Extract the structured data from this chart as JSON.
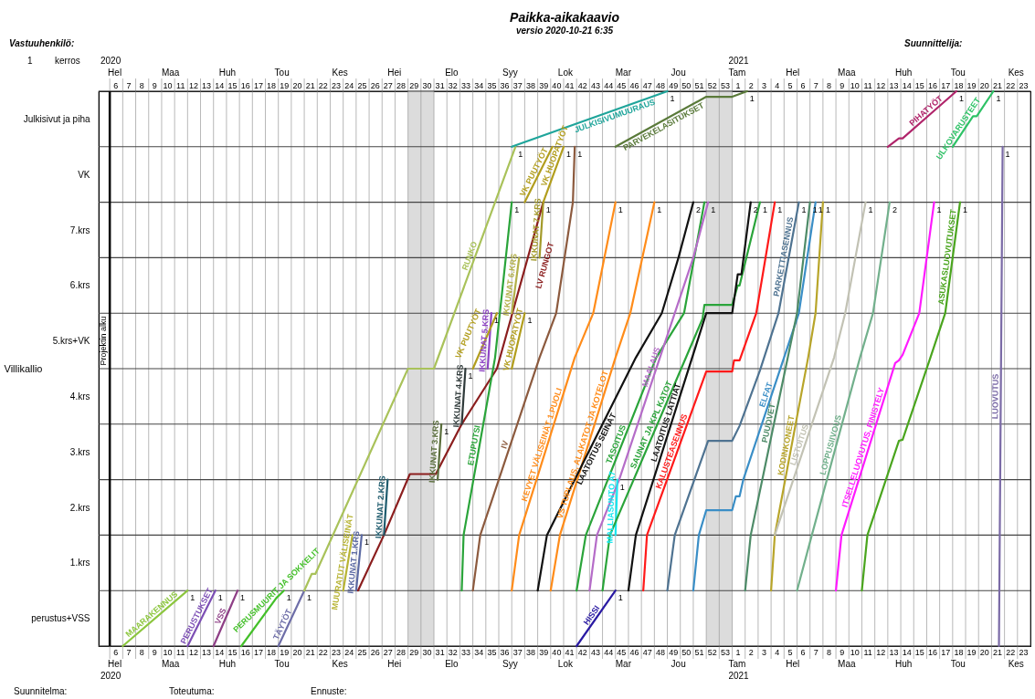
{
  "chart_data": {
    "type": "line",
    "title": "Paikka-aikakaavio",
    "subtitle": "versio 2020-10-21 6:35",
    "ylabel": "Villikallio",
    "xlim": [
      "2020-01-28",
      "2021-06-14"
    ],
    "ylim": [
      0,
      10
    ],
    "x2lim": [
      "2020-01-28",
      "2021-06-14"
    ],
    "grid": true,
    "xticks": [
      {
        "value": "2020-02-06",
        "label": "6"
      },
      {
        "value": "2020-02-13",
        "label": "7"
      },
      {
        "value": "2020-02-20",
        "label": "8"
      },
      {
        "value": "2020-02-27",
        "label": "9"
      },
      {
        "value": "2020-03-05",
        "label": "10"
      },
      {
        "value": "2020-03-12",
        "label": "11"
      },
      {
        "value": "2020-03-19",
        "label": "12"
      },
      {
        "value": "2020-03-26",
        "label": "13"
      },
      {
        "value": "2020-04-02",
        "label": "14"
      },
      {
        "value": "2020-04-09",
        "label": "15"
      },
      {
        "value": "2020-04-16",
        "label": "16"
      },
      {
        "value": "2020-04-23",
        "label": "17"
      },
      {
        "value": "2020-04-30",
        "label": "18"
      },
      {
        "value": "2020-05-07",
        "label": "19"
      },
      {
        "value": "2020-05-14",
        "label": "20"
      },
      {
        "value": "2020-05-21",
        "label": "21"
      },
      {
        "value": "2020-05-28",
        "label": "22"
      },
      {
        "value": "2020-06-04",
        "label": "23"
      },
      {
        "value": "2020-06-11",
        "label": "24"
      },
      {
        "value": "2020-06-18",
        "label": "25"
      },
      {
        "value": "2020-06-25",
        "label": "26"
      },
      {
        "value": "2020-07-02",
        "label": "27"
      },
      {
        "value": "2020-07-09",
        "label": "28"
      },
      {
        "value": "2020-07-16",
        "label": "29"
      },
      {
        "value": "2020-07-23",
        "label": "30"
      },
      {
        "value": "2020-07-30",
        "label": "31"
      },
      {
        "value": "2020-08-06",
        "label": "32"
      },
      {
        "value": "2020-08-13",
        "label": "33"
      },
      {
        "value": "2020-08-20",
        "label": "34"
      },
      {
        "value": "2020-08-27",
        "label": "35"
      },
      {
        "value": "2020-09-03",
        "label": "36"
      },
      {
        "value": "2020-09-10",
        "label": "37"
      },
      {
        "value": "2020-09-17",
        "label": "38"
      },
      {
        "value": "2020-09-24",
        "label": "39"
      },
      {
        "value": "2020-10-01",
        "label": "40"
      },
      {
        "value": "2020-10-08",
        "label": "41"
      },
      {
        "value": "2020-10-15",
        "label": "42"
      },
      {
        "value": "2020-10-22",
        "label": "43"
      },
      {
        "value": "2020-10-29",
        "label": "44"
      },
      {
        "value": "2020-11-05",
        "label": "45"
      },
      {
        "value": "2020-11-12",
        "label": "46"
      },
      {
        "value": "2020-11-19",
        "label": "47"
      },
      {
        "value": "2020-11-26",
        "label": "48"
      },
      {
        "value": "2020-12-03",
        "label": "49"
      },
      {
        "value": "2020-12-10",
        "label": "50"
      },
      {
        "value": "2020-12-17",
        "label": "51"
      },
      {
        "value": "2020-12-24",
        "label": "52"
      },
      {
        "value": "2020-12-31",
        "label": "53"
      },
      {
        "value": "2021-01-07",
        "label": "1"
      },
      {
        "value": "2021-01-14",
        "label": "2"
      },
      {
        "value": "2021-01-21",
        "label": "3"
      },
      {
        "value": "2021-01-28",
        "label": "4"
      },
      {
        "value": "2021-02-04",
        "label": "5"
      },
      {
        "value": "2021-02-11",
        "label": "6"
      },
      {
        "value": "2021-02-18",
        "label": "7"
      },
      {
        "value": "2021-02-25",
        "label": "8"
      },
      {
        "value": "2021-03-04",
        "label": "9"
      },
      {
        "value": "2021-03-11",
        "label": "10"
      },
      {
        "value": "2021-03-18",
        "label": "11"
      },
      {
        "value": "2021-03-25",
        "label": "12"
      },
      {
        "value": "2021-04-01",
        "label": "13"
      },
      {
        "value": "2021-04-08",
        "label": "14"
      },
      {
        "value": "2021-04-15",
        "label": "15"
      },
      {
        "value": "2021-04-22",
        "label": "16"
      },
      {
        "value": "2021-04-29",
        "label": "17"
      },
      {
        "value": "2021-05-06",
        "label": "18"
      },
      {
        "value": "2021-05-13",
        "label": "19"
      },
      {
        "value": "2021-05-20",
        "label": "20"
      },
      {
        "value": "2021-05-27",
        "label": "21"
      },
      {
        "value": "2021-06-03",
        "label": "22"
      },
      {
        "value": "2021-06-10",
        "label": "23"
      },
      {
        "value": "2020-02-03",
        "label": null
      },
      {
        "value": "2020-02-10",
        "label": null
      },
      {
        "value": "2020-02-17",
        "label": null
      },
      {
        "value": "2020-02-24",
        "label": null
      },
      {
        "value": "2020-03-02",
        "label": null
      },
      {
        "value": "2020-03-09",
        "label": null
      },
      {
        "value": "2020-03-16",
        "label": null
      },
      {
        "value": "2020-03-23",
        "label": null
      },
      {
        "value": "2020-03-30",
        "label": null
      },
      {
        "value": "2020-04-06",
        "label": null
      },
      {
        "value": "2020-04-13",
        "label": null
      },
      {
        "value": "2020-04-20",
        "label": null
      },
      {
        "value": "2020-04-27",
        "label": null
      },
      {
        "value": "2020-05-04",
        "label": null
      },
      {
        "value": "2020-05-11",
        "label": null
      },
      {
        "value": "2020-05-18",
        "label": null
      },
      {
        "value": "2020-05-25",
        "label": null
      },
      {
        "value": "2020-06-01",
        "label": null
      },
      {
        "value": "2020-06-08",
        "label": null
      },
      {
        "value": "2020-06-15",
        "label": null
      },
      {
        "value": "2020-06-22",
        "label": null
      },
      {
        "value": "2020-06-29",
        "label": null
      },
      {
        "value": "2020-07-06",
        "label": null
      },
      {
        "value": "2020-07-13",
        "label": null
      },
      {
        "value": "2020-07-20",
        "label": null
      },
      {
        "value": "2020-07-27",
        "label": null
      },
      {
        "value": "2020-08-03",
        "label": null
      },
      {
        "value": "2020-08-10",
        "label": null
      },
      {
        "value": "2020-08-17",
        "label": null
      },
      {
        "value": "2020-08-24",
        "label": null
      },
      {
        "value": "2020-08-31",
        "label": null
      },
      {
        "value": "2020-09-07",
        "label": null
      },
      {
        "value": "2020-09-14",
        "label": null
      },
      {
        "value": "2020-09-21",
        "label": null
      },
      {
        "value": "2020-09-28",
        "label": null
      },
      {
        "value": "2020-10-05",
        "label": null
      },
      {
        "value": "2020-10-12",
        "label": null
      },
      {
        "value": "2020-10-19",
        "label": null
      },
      {
        "value": "2020-10-26",
        "label": null
      },
      {
        "value": "2020-11-02",
        "label": null
      },
      {
        "value": "2020-11-09",
        "label": null
      },
      {
        "value": "2020-11-16",
        "label": null
      },
      {
        "value": "2020-11-23",
        "label": null
      },
      {
        "value": "2020-11-30",
        "label": null
      },
      {
        "value": "2020-12-07",
        "label": null
      },
      {
        "value": "2020-12-14",
        "label": null
      },
      {
        "value": "2020-12-21",
        "label": null
      },
      {
        "value": "2020-12-28",
        "label": null
      },
      {
        "value": "2021-01-04",
        "label": null
      },
      {
        "value": "2021-01-11",
        "label": null
      },
      {
        "value": "2021-01-18",
        "label": null
      },
      {
        "value": "2021-01-25",
        "label": null
      },
      {
        "value": "2021-02-01",
        "label": null
      },
      {
        "value": "2021-02-08",
        "label": null
      },
      {
        "value": "2021-02-15",
        "label": null
      },
      {
        "value": "2021-02-22",
        "label": null
      },
      {
        "value": "2021-03-01",
        "label": null
      },
      {
        "value": "2021-03-08",
        "label": null
      },
      {
        "value": "2021-03-15",
        "label": null
      },
      {
        "value": "2021-03-22",
        "label": null
      },
      {
        "value": "2021-03-29",
        "label": null
      },
      {
        "value": "2021-04-05",
        "label": null
      },
      {
        "value": "2021-04-12",
        "label": null
      },
      {
        "value": "2021-04-19",
        "label": null
      },
      {
        "value": "2021-04-26",
        "label": null
      },
      {
        "value": "2021-05-03",
        "label": null
      },
      {
        "value": "2021-05-10",
        "label": null
      },
      {
        "value": "2021-05-17",
        "label": null
      },
      {
        "value": "2021-05-24",
        "label": null
      },
      {
        "value": "2021-05-31",
        "label": null
      },
      {
        "value": "2021-06-07",
        "label": null
      }
    ],
    "x2ticks": [
      {
        "value": "2020-02-06",
        "label": "6"
      },
      {
        "value": "2020-02-13",
        "label": "7"
      },
      {
        "value": "2020-02-20",
        "label": "8"
      },
      {
        "value": "2020-02-27",
        "label": "9"
      },
      {
        "value": "2020-03-05",
        "label": "10"
      },
      {
        "value": "2020-03-12",
        "label": "11"
      },
      {
        "value": "2020-03-19",
        "label": "12"
      },
      {
        "value": "2020-03-26",
        "label": "13"
      },
      {
        "value": "2020-04-02",
        "label": "14"
      },
      {
        "value": "2020-04-09",
        "label": "15"
      },
      {
        "value": "2020-04-16",
        "label": "16"
      },
      {
        "value": "2020-04-23",
        "label": "17"
      },
      {
        "value": "2020-04-30",
        "label": "18"
      },
      {
        "value": "2020-05-07",
        "label": "19"
      },
      {
        "value": "2020-05-14",
        "label": "20"
      },
      {
        "value": "2020-05-21",
        "label": "21"
      },
      {
        "value": "2020-05-28",
        "label": "22"
      },
      {
        "value": "2020-06-04",
        "label": "23"
      },
      {
        "value": "2020-06-11",
        "label": "24"
      },
      {
        "value": "2020-06-18",
        "label": "25"
      },
      {
        "value": "2020-06-25",
        "label": "26"
      },
      {
        "value": "2020-07-02",
        "label": "27"
      },
      {
        "value": "2020-07-09",
        "label": "28"
      },
      {
        "value": "2020-07-16",
        "label": "29"
      },
      {
        "value": "2020-07-23",
        "label": "30"
      },
      {
        "value": "2020-07-30",
        "label": "31"
      },
      {
        "value": "2020-08-06",
        "label": "32"
      },
      {
        "value": "2020-08-13",
        "label": "33"
      },
      {
        "value": "2020-08-20",
        "label": "34"
      },
      {
        "value": "2020-08-27",
        "label": "35"
      },
      {
        "value": "2020-09-03",
        "label": "36"
      },
      {
        "value": "2020-09-10",
        "label": "37"
      },
      {
        "value": "2020-09-17",
        "label": "38"
      },
      {
        "value": "2020-09-24",
        "label": "39"
      },
      {
        "value": "2020-10-01",
        "label": "40"
      },
      {
        "value": "2020-10-08",
        "label": "41"
      },
      {
        "value": "2020-10-15",
        "label": "42"
      },
      {
        "value": "2020-10-22",
        "label": "43"
      },
      {
        "value": "2020-10-29",
        "label": "44"
      },
      {
        "value": "2020-11-05",
        "label": "45"
      },
      {
        "value": "2020-11-12",
        "label": "46"
      },
      {
        "value": "2020-11-19",
        "label": "47"
      },
      {
        "value": "2020-11-26",
        "label": "48"
      },
      {
        "value": "2020-12-03",
        "label": "49"
      },
      {
        "value": "2020-12-10",
        "label": "50"
      },
      {
        "value": "2020-12-17",
        "label": "51"
      },
      {
        "value": "2020-12-24",
        "label": "52"
      },
      {
        "value": "2020-12-31",
        "label": "53"
      },
      {
        "value": "2021-01-07",
        "label": "1"
      },
      {
        "value": "2021-01-14",
        "label": "2"
      },
      {
        "value": "2021-01-21",
        "label": "3"
      },
      {
        "value": "2021-01-28",
        "label": "4"
      },
      {
        "value": "2021-02-04",
        "label": "5"
      },
      {
        "value": "2021-02-11",
        "label": "6"
      },
      {
        "value": "2021-02-18",
        "label": "7"
      },
      {
        "value": "2021-02-25",
        "label": "8"
      },
      {
        "value": "2021-03-04",
        "label": "9"
      },
      {
        "value": "2021-03-11",
        "label": "10"
      },
      {
        "value": "2021-03-18",
        "label": "11"
      },
      {
        "value": "2021-03-25",
        "label": "12"
      },
      {
        "value": "2021-04-01",
        "label": "13"
      },
      {
        "value": "2021-04-08",
        "label": "14"
      },
      {
        "value": "2021-04-15",
        "label": "15"
      },
      {
        "value": "2021-04-22",
        "label": "16"
      },
      {
        "value": "2021-04-29",
        "label": "17"
      },
      {
        "value": "2021-05-06",
        "label": "18"
      },
      {
        "value": "2021-05-13",
        "label": "19"
      },
      {
        "value": "2021-05-20",
        "label": "20"
      },
      {
        "value": "2021-05-27",
        "label": "21"
      },
      {
        "value": "2021-06-03",
        "label": "22"
      },
      {
        "value": "2021-06-10",
        "label": "23"
      }
    ],
    "yticks": [
      {
        "value": 0.5,
        "label": "perustus+VSS"
      },
      {
        "value": 1.5,
        "label": "1.krs"
      },
      {
        "value": 2.5,
        "label": "2.krs"
      },
      {
        "value": 3.5,
        "label": "3.krs"
      },
      {
        "value": 4.5,
        "label": "4.krs"
      },
      {
        "value": 5.5,
        "label": "5.krs+VK"
      },
      {
        "value": 6.5,
        "label": "6.krs"
      },
      {
        "value": 7.5,
        "label": "7.krs"
      },
      {
        "value": 8.5,
        "label": "VK"
      },
      {
        "value": 9.5,
        "label": "Julkisivut ja piha"
      },
      {
        "value": 0,
        "label": null
      },
      {
        "value": 1,
        "label": null
      },
      {
        "value": 2,
        "label": null
      },
      {
        "value": 3,
        "label": null
      },
      {
        "value": 4,
        "label": null
      },
      {
        "value": 5,
        "label": null
      },
      {
        "value": 6,
        "label": null
      },
      {
        "value": 7,
        "label": null
      },
      {
        "value": 8,
        "label": null
      },
      {
        "value": 9,
        "label": null
      },
      {
        "value": 10,
        "label": null
      }
    ],
    "bands": [
      {
        "axis": "x",
        "from": "2020-07-13",
        "to": "2020-07-27",
        "color": "#dcdcdc"
      },
      {
        "axis": "x",
        "from": "2020-12-21",
        "to": "2021-01-04",
        "color": "#dcdcdc"
      }
    ],
    "ref_lines": [
      {
        "axis": "x",
        "value": "2020-02-03",
        "label": "Projektin alku",
        "color": "#000000"
      }
    ],
    "series": [
      {
        "name": "MAARAKENNUS",
        "color": "#8cc63e",
        "x": [
          "2020-02-10",
          "2020-03-16"
        ],
        "values": [
          0,
          1
        ]
      },
      {
        "name": "PERUSTUKSET",
        "color": "#7d4fb5",
        "x": [
          "2020-03-16",
          "2020-03-31"
        ],
        "values": [
          0,
          1
        ]
      },
      {
        "name": "VSS",
        "color": "#8e3f86",
        "x": [
          "2020-03-30",
          "2020-04-12"
        ],
        "values": [
          0,
          1
        ]
      },
      {
        "name": "PERUSMUURIT JA SOKKELIT",
        "color": "#44c02a",
        "x": [
          "2020-04-14",
          "2020-05-03",
          "2020-05-07"
        ],
        "values": [
          0,
          0.87,
          1
        ]
      },
      {
        "name": "TÄYTÖT",
        "color": "#6e6ea8",
        "x": [
          "2020-05-04",
          "2020-05-18"
        ],
        "values": [
          0,
          1
        ]
      },
      {
        "name": "RUNKO",
        "color": "#a9c25a",
        "x": [
          "2020-05-18",
          "2020-05-22",
          "2020-05-24",
          "2020-07-13",
          "2020-07-27",
          "2020-09-09"
        ],
        "values": [
          1,
          1.3,
          1.3,
          5,
          5,
          9
        ]
      },
      {
        "name": "MUURATUT VÄLISEINÄT",
        "color": "#b8b435",
        "x": [
          "2020-06-08",
          "2020-06-13"
        ],
        "values": [
          1,
          2
        ]
      },
      {
        "name": "IKKUNAT 1.KRS",
        "color": "#5c6aa3",
        "x": [
          "2020-06-15",
          "2020-06-18"
        ],
        "values": [
          1,
          2
        ]
      },
      {
        "name": "LV RUNGOT",
        "color": "#8b1e1e",
        "x": [
          "2020-06-16",
          "2020-06-30",
          "2020-07-14",
          "2020-07-28",
          "2020-08-11",
          "2020-08-30",
          "2020-09-24"
        ],
        "values": [
          1,
          2,
          3.1,
          3.1,
          4,
          5,
          8
        ]
      },
      {
        "name": "IKKUNAT 2.KRS",
        "color": "#1f5c6e",
        "x": [
          "2020-06-30",
          "2020-07-02"
        ],
        "values": [
          2,
          3
        ]
      },
      {
        "name": "IKKUNAT 3.KRS",
        "color": "#5a6e3c",
        "x": [
          "2020-07-29",
          "2020-07-31"
        ],
        "values": [
          3,
          4
        ]
      },
      {
        "name": "IKKUNAT 4.KRS",
        "color": "#2f3a3a",
        "x": [
          "2020-08-11",
          "2020-08-13"
        ],
        "values": [
          4,
          5
        ]
      },
      {
        "name": "IKKUNAT 5.KRS",
        "color": "#8e44c4",
        "x": [
          "2020-08-25",
          "2020-08-27"
        ],
        "values": [
          5,
          6
        ]
      },
      {
        "name": "ETUPUTSI",
        "color": "#2aa43a",
        "x": [
          "2020-08-11",
          "2020-08-12",
          "2020-08-29",
          "2020-09-07"
        ],
        "values": [
          1,
          2,
          5.2,
          8
        ]
      },
      {
        "name": "IKKUNAT 6.KRS",
        "color": "#b3b04a",
        "x": [
          "2020-09-07",
          "2020-09-11"
        ],
        "values": [
          6,
          7
        ]
      },
      {
        "name": "IKKUNAT 7.KRS",
        "color": "#a39a2a",
        "x": [
          "2020-09-22",
          "2020-09-24"
        ],
        "values": [
          7,
          8
        ]
      },
      {
        "name": "VK HUOPATYÖT",
        "color": "#b29e1e",
        "x": [
          "2020-09-07",
          "2020-09-14"
        ],
        "values": [
          5,
          6
        ]
      },
      {
        "name": "VK PUUTYÖT",
        "color": "#b29e1e",
        "x": [
          "2020-08-17",
          "2020-08-30"
        ],
        "values": [
          5,
          6
        ]
      },
      {
        "name": "VK PUUTYÖT",
        "color": "#b29e1e",
        "x": [
          "2020-09-14",
          "2020-09-29"
        ],
        "values": [
          8,
          9
        ]
      },
      {
        "name": "VK HUOPATYÖT",
        "color": "#b29e1e",
        "x": [
          "2020-09-24",
          "2020-10-05"
        ],
        "values": [
          8,
          9
        ]
      },
      {
        "name": "IV",
        "color": "#8c5a3e",
        "x": [
          "2020-08-17",
          "2020-08-21",
          "2020-09-22",
          "2020-10-01",
          "2020-10-10",
          "2020-10-11"
        ],
        "values": [
          1,
          2,
          5.2,
          6,
          8,
          9
        ]
      },
      {
        "name": "KEVYET VÄLISEINÄT 1.PUOLI",
        "color": "#ff8c1a",
        "x": [
          "2020-09-07",
          "2020-09-11",
          "2020-10-11",
          "2020-10-21",
          "2020-11-02"
        ],
        "values": [
          1,
          2,
          5.2,
          6,
          8
        ]
      },
      {
        "name": "VS TUPLAUS, ALAKATOT JA KOTELOT",
        "color": "#ff8c1a",
        "x": [
          "2020-09-28",
          "2020-10-03",
          "2020-11-02",
          "2020-11-10",
          "2020-11-23"
        ],
        "values": [
          1,
          2,
          5.2,
          6,
          8
        ]
      },
      {
        "name": "LAATOITUS SEINÄT",
        "color": "#111111",
        "x": [
          "2020-09-21",
          "2020-09-26",
          "2020-11-13",
          "2020-11-27",
          "2020-12-06",
          "2020-12-14"
        ],
        "values": [
          1,
          2,
          5.2,
          6,
          7,
          8
        ]
      },
      {
        "name": "TASOITUS",
        "color": "#2aa43a",
        "x": [
          "2020-10-12",
          "2020-10-17",
          "2020-11-24",
          "2020-12-09",
          "2020-12-20"
        ],
        "values": [
          1,
          2,
          5.2,
          6,
          8
        ]
      },
      {
        "name": "MAALAUS",
        "color": "#b56cc8",
        "x": [
          "2020-10-19",
          "2020-10-23",
          "2020-11-04",
          "2020-12-14",
          "2020-12-22"
        ],
        "values": [
          1,
          2,
          3,
          7,
          8
        ]
      },
      {
        "name": "MALLIASUNTO A7",
        "color": "#19e6ef",
        "x": [
          "2020-11-02",
          "2020-11-03"
        ],
        "values": [
          2,
          3
        ]
      },
      {
        "name": "SAUNAT JA KPL KATOT",
        "color": "#2aa43a",
        "x": [
          "2020-10-26",
          "2020-10-30",
          "2020-12-19",
          "2020-12-20",
          "2021-01-04",
          "2021-01-07",
          "2021-01-08",
          "2021-01-19"
        ],
        "values": [
          1,
          2,
          5.9,
          6.15,
          6.15,
          6.5,
          6.5,
          8
        ]
      },
      {
        "name": "LAATOITUS LATTIAT",
        "color": "#111111",
        "x": [
          "2020-11-09",
          "2020-11-13",
          "2020-12-21",
          "2021-01-04",
          "2021-01-07",
          "2021-01-09",
          "2021-01-14"
        ],
        "values": [
          1,
          2,
          6,
          6,
          6.7,
          6.7,
          8
        ]
      },
      {
        "name": "KALUSTEASENNUS",
        "color": "#ff1a1a",
        "x": [
          "2020-11-17",
          "2020-11-19",
          "2020-12-21",
          "2021-01-04",
          "2021-01-05",
          "2021-01-08",
          "2021-01-17",
          "2021-01-27"
        ],
        "values": [
          1,
          2,
          4.95,
          4.95,
          5.15,
          5.15,
          6,
          8
        ]
      },
      {
        "name": "PARKETTIASENNUS",
        "color": "#4f7391",
        "x": [
          "2020-11-30",
          "2020-12-04",
          "2020-12-22",
          "2021-01-04",
          "2021-01-08",
          "2021-01-19",
          "2021-01-29",
          "2021-02-09"
        ],
        "values": [
          1,
          2,
          3.7,
          3.7,
          3.97,
          4.97,
          6,
          8
        ]
      },
      {
        "name": "ELFAT",
        "color": "#3a8ec6",
        "x": [
          "2020-12-14",
          "2020-12-17",
          "2020-12-21",
          "2021-01-04",
          "2021-01-06",
          "2021-01-08",
          "2021-01-10",
          "2021-02-09",
          "2021-02-18"
        ],
        "values": [
          1,
          2,
          2.45,
          2.45,
          2.7,
          2.7,
          3,
          6,
          8
        ]
      },
      {
        "name": "PUUOVET",
        "color": "#4e8b68",
        "x": [
          "2021-01-11",
          "2021-01-14",
          "2021-02-08",
          "2021-02-15"
        ],
        "values": [
          1,
          2,
          6,
          8
        ]
      },
      {
        "name": "KODINKONEET",
        "color": "#b8a52a",
        "x": [
          "2021-01-25",
          "2021-01-27",
          "2021-02-14",
          "2021-02-18",
          "2021-02-22"
        ],
        "values": [
          1,
          2,
          5.2,
          6,
          8
        ]
      },
      {
        "name": "LISTOITUS",
        "color": "#c2c2b4",
        "x": [
          "2021-01-27",
          "2021-02-28",
          "2021-03-06",
          "2021-03-17"
        ],
        "values": [
          2,
          5.2,
          6,
          8
        ]
      },
      {
        "name": "LOPPUSIIVOUS",
        "color": "#72b08c",
        "x": [
          "2021-02-08",
          "2021-02-16",
          "2021-03-14",
          "2021-03-21",
          "2021-03-30"
        ],
        "values": [
          1,
          2,
          5.2,
          6,
          8
        ]
      },
      {
        "name": "ITSELLELUOVUTUS, FINISTELY",
        "color": "#ff1aff",
        "x": [
          "2021-03-01",
          "2021-03-04",
          "2021-04-02",
          "2021-04-04",
          "2021-04-06",
          "2021-04-15",
          "2021-04-23"
        ],
        "values": [
          1,
          2,
          5.1,
          5.15,
          5.25,
          6,
          8
        ]
      },
      {
        "name": "ASUKASLUOVUTUKSET",
        "color": "#4aa51e",
        "x": [
          "2021-03-15",
          "2021-03-18",
          "2021-04-04",
          "2021-04-06",
          "2021-04-21",
          "2021-04-29",
          "2021-05-07"
        ],
        "values": [
          1,
          2,
          3.7,
          3.72,
          5.2,
          6,
          8
        ]
      },
      {
        "name": "LUOVUTUS",
        "color": "#7a6aa6",
        "x": [
          "2021-05-28",
          "2021-05-30"
        ],
        "values": [
          0,
          9
        ]
      },
      {
        "name": "HISSI",
        "color": "#2a1aa3",
        "x": [
          "2020-10-12",
          "2020-11-02"
        ],
        "values": [
          0,
          1
        ]
      },
      {
        "name": "JULKISIVUMUURAUS",
        "color": "#1fa59b",
        "x": [
          "2020-09-07",
          "2020-11-30"
        ],
        "values": [
          9,
          10
        ]
      },
      {
        "name": "PARVEKELASITUKSET",
        "color": "#5a7a3a",
        "x": [
          "2020-11-02",
          "2020-12-21",
          "2021-01-04",
          "2021-01-12"
        ],
        "values": [
          9,
          9.9,
          9.9,
          10
        ]
      },
      {
        "name": "PIHATYÖT",
        "color": "#b0246a",
        "x": [
          "2021-03-29",
          "2021-04-04",
          "2021-04-06",
          "2021-05-05"
        ],
        "values": [
          9,
          9.15,
          9.15,
          10
        ]
      },
      {
        "name": "ULKOVARUSTEET",
        "color": "#2ec266",
        "x": [
          "2021-05-03",
          "2021-05-14",
          "2021-05-16",
          "2021-05-25"
        ],
        "values": [
          9,
          9.55,
          9.55,
          10
        ]
      }
    ],
    "annotations": [
      "Vastuuhenkilö:",
      "Suunnittelija:",
      "1",
      "kerros",
      "Suunnitelma:",
      "Toteutuma:",
      "Ennuste:",
      "2020",
      "2021",
      "Hel",
      "Maa",
      "Huh",
      "Tou",
      "Kes",
      "Hei",
      "Elo",
      "Syy",
      "Lok",
      "Mar",
      "Jou",
      "Tam",
      "Hel",
      "Maa",
      "Huh",
      "Tou",
      "Kes",
      {
        "text": "1",
        "x": "2020-03-16",
        "y": 1
      },
      {
        "text": "1",
        "x": "2020-03-31",
        "y": 1
      },
      {
        "text": "1",
        "x": "2020-04-12",
        "y": 1
      },
      {
        "text": "1",
        "x": "2020-05-07",
        "y": 1
      },
      {
        "text": "1",
        "x": "2020-05-18",
        "y": 1
      },
      {
        "text": "1",
        "x": "2020-06-18",
        "y": 2
      },
      {
        "text": "1",
        "x": "2020-07-31",
        "y": 4
      },
      {
        "text": "1",
        "x": "2020-08-13",
        "y": 5
      },
      {
        "text": "1",
        "x": "2020-08-27",
        "y": 6
      },
      {
        "text": "1",
        "x": "2020-09-14",
        "y": 6
      },
      {
        "text": "1",
        "x": "2020-09-09",
        "y": 9
      },
      {
        "text": "1",
        "x": "2020-10-05",
        "y": 9
      },
      {
        "text": "1",
        "x": "2020-10-11",
        "y": 9
      },
      {
        "text": "1",
        "x": "2020-09-07",
        "y": 8
      },
      {
        "text": "1",
        "x": "2020-09-24",
        "y": 8
      },
      {
        "text": "1",
        "x": "2020-11-02",
        "y": 8
      },
      {
        "text": "1",
        "x": "2020-11-23",
        "y": 8
      },
      {
        "text": "2",
        "x": "2020-12-14",
        "y": 8
      },
      {
        "text": "1",
        "x": "2020-12-22",
        "y": 8
      },
      {
        "text": "2",
        "x": "2021-01-14",
        "y": 8
      },
      {
        "text": "1",
        "x": "2021-01-19",
        "y": 8
      },
      {
        "text": "1",
        "x": "2021-01-27",
        "y": 8
      },
      {
        "text": "1",
        "x": "2021-02-09",
        "y": 8
      },
      {
        "text": "1",
        "x": "2021-02-15",
        "y": 8
      },
      {
        "text": "1",
        "x": "2021-02-18",
        "y": 8
      },
      {
        "text": "1",
        "x": "2021-02-22",
        "y": 8
      },
      {
        "text": "1",
        "x": "2021-03-17",
        "y": 8
      },
      {
        "text": "2",
        "x": "2021-03-30",
        "y": 8
      },
      {
        "text": "1",
        "x": "2021-04-23",
        "y": 8
      },
      {
        "text": "1",
        "x": "2021-05-07",
        "y": 8
      },
      {
        "text": "1",
        "x": "2021-05-30",
        "y": 9
      },
      {
        "text": "1",
        "x": "2020-11-02",
        "y": 1
      },
      {
        "text": "1",
        "x": "2020-11-03",
        "y": 3
      },
      {
        "text": "1",
        "x": "2020-11-30",
        "y": 10
      },
      {
        "text": "1",
        "x": "2021-01-12",
        "y": 10
      },
      {
        "text": "1",
        "x": "2021-05-05",
        "y": 10
      },
      {
        "text": "1",
        "x": "2021-05-25",
        "y": 10
      }
    ]
  }
}
